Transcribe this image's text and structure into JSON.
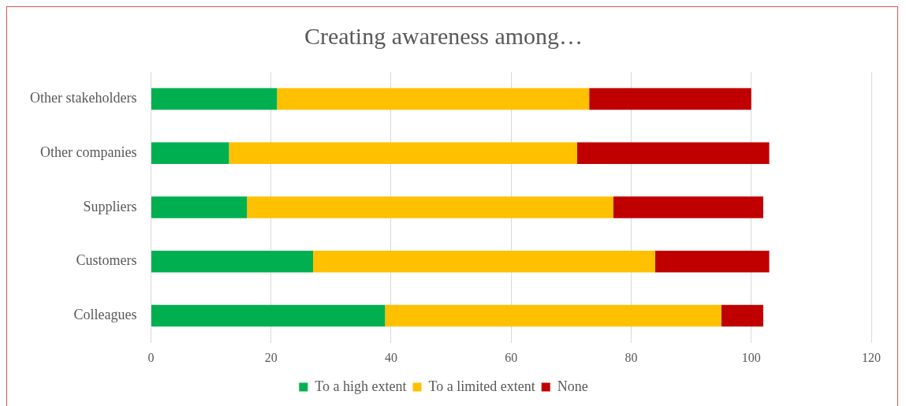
{
  "chart_data": {
    "type": "bar",
    "orientation": "horizontal",
    "stacked": true,
    "title": "Creating awareness among…",
    "categories": [
      "Other stakeholders",
      "Other companies",
      "Suppliers",
      "Customers",
      "Colleagues"
    ],
    "series": [
      {
        "name": "To a high extent",
        "color": "#00b050",
        "values": [
          21,
          13,
          16,
          27,
          39
        ]
      },
      {
        "name": "To a limited extent",
        "color": "#ffc000",
        "values": [
          52,
          58,
          61,
          57,
          56
        ]
      },
      {
        "name": "None",
        "color": "#c00000",
        "values": [
          27,
          32,
          25,
          19,
          7
        ]
      }
    ],
    "xlim": [
      0,
      120
    ],
    "xticks": [
      0,
      20,
      40,
      60,
      80,
      100,
      120
    ],
    "grid": "x",
    "legend": "bottom"
  }
}
